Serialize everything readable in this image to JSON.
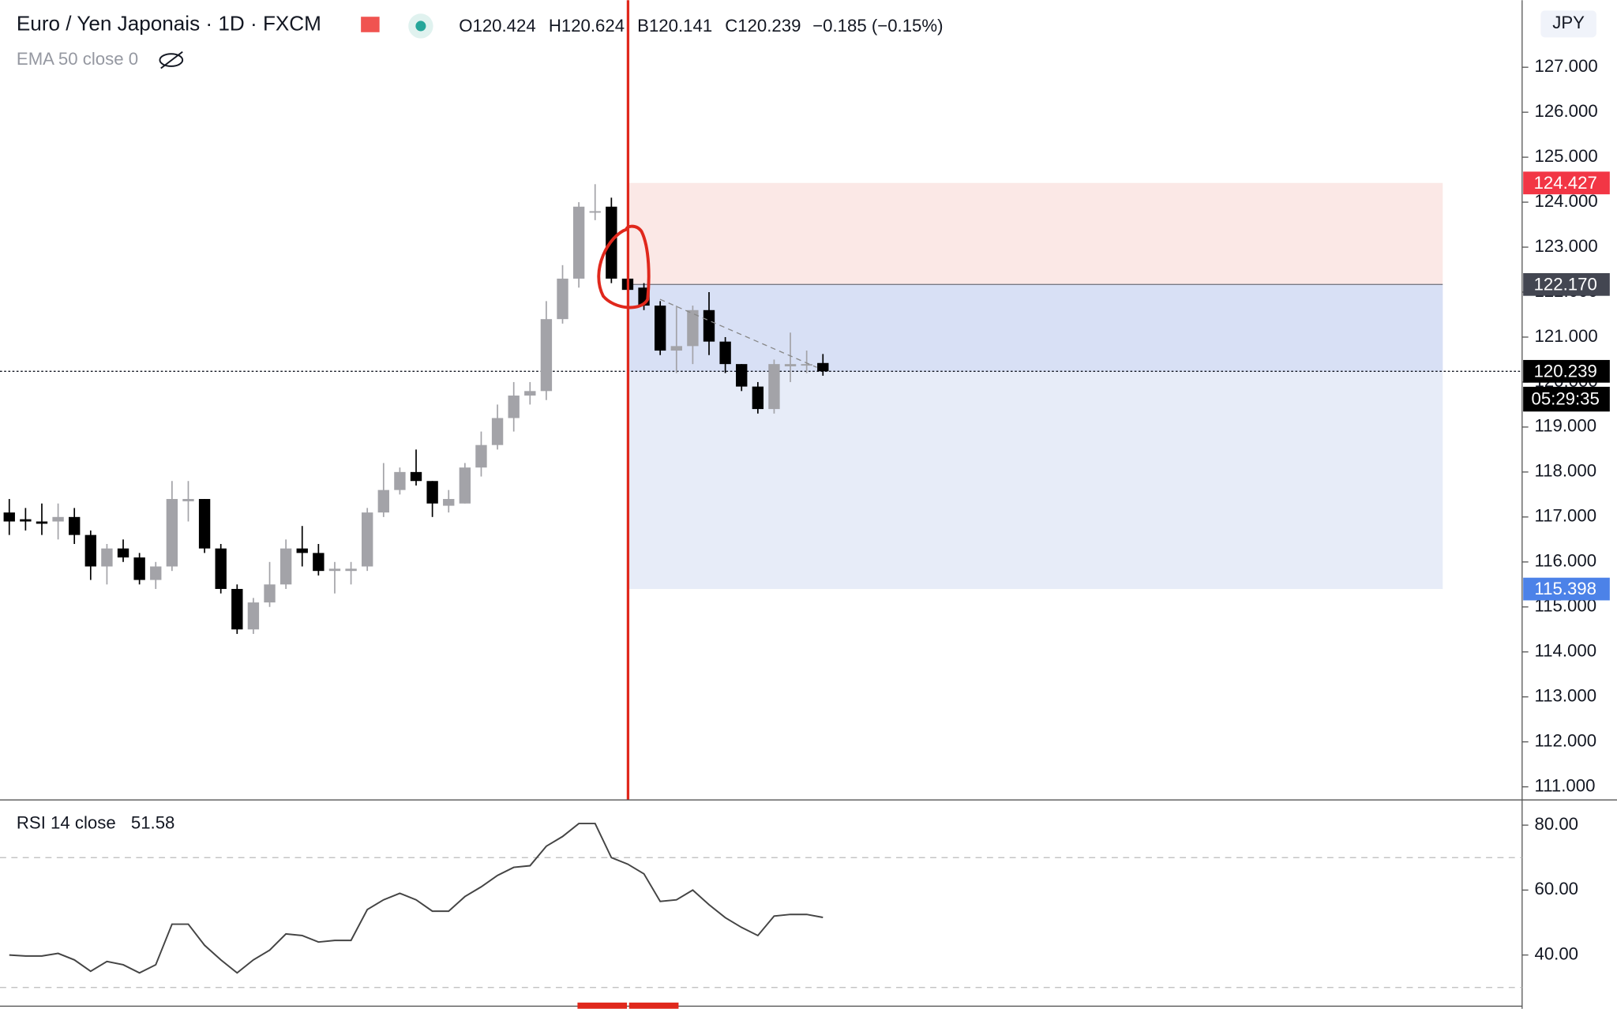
{
  "header": {
    "symbol": "Euro / Yen Japonais · 1D · FXCM",
    "open": "O120.424",
    "high": "H120.624",
    "low": "B120.141",
    "close": "C120.239",
    "change": "−0.185 (−0.15%)",
    "indicator": "EMA 50 close 0",
    "currency": "JPY"
  },
  "chart_data": [
    {
      "type": "candlestick",
      "up_color": "#a3a3a8",
      "down_color": "#000000",
      "open": [
        117.1,
        116.95,
        116.9,
        116.9,
        117.0,
        116.6,
        115.9,
        116.3,
        116.1,
        115.6,
        115.9,
        117.35,
        117.4,
        116.3,
        115.4,
        114.5,
        115.1,
        115.5,
        116.3,
        116.2,
        115.8,
        115.8,
        115.9,
        117.1,
        117.6,
        118.0,
        117.8,
        117.25,
        117.3,
        118.1,
        118.6,
        119.2,
        119.7,
        119.8,
        121.4,
        122.3,
        123.8,
        123.9,
        122.3,
        122.1,
        121.7,
        120.7,
        120.8,
        121.6,
        120.9,
        120.4,
        119.9,
        119.4,
        120.35,
        120.4,
        120.424
      ],
      "high": [
        117.4,
        117.2,
        117.3,
        117.3,
        117.2,
        116.7,
        116.4,
        116.5,
        116.2,
        116.0,
        117.8,
        117.8,
        117.4,
        116.4,
        115.5,
        115.2,
        116.0,
        116.5,
        116.8,
        116.4,
        116.0,
        116.0,
        117.2,
        118.2,
        118.1,
        118.5,
        117.8,
        117.6,
        118.2,
        118.9,
        119.5,
        120.0,
        120.0,
        121.8,
        122.6,
        124.0,
        124.4,
        124.1,
        122.5,
        122.2,
        121.8,
        121.7,
        121.7,
        122.0,
        121.0,
        120.4,
        120.0,
        120.5,
        121.1,
        120.7,
        120.624
      ],
      "low": [
        116.6,
        116.7,
        116.6,
        116.5,
        116.4,
        115.6,
        115.5,
        116.0,
        115.5,
        115.4,
        115.8,
        116.9,
        116.2,
        115.3,
        114.4,
        114.4,
        115.0,
        115.4,
        115.9,
        115.7,
        115.3,
        115.5,
        115.8,
        117.0,
        117.5,
        117.7,
        117.0,
        117.1,
        117.3,
        117.9,
        118.5,
        118.9,
        119.5,
        119.6,
        121.3,
        122.1,
        123.6,
        122.2,
        121.9,
        121.6,
        120.6,
        120.2,
        120.4,
        120.6,
        120.2,
        119.8,
        119.3,
        119.3,
        120.0,
        120.2,
        120.141
      ],
      "close": [
        116.9,
        116.9,
        116.85,
        117.0,
        116.6,
        115.9,
        116.3,
        116.1,
        115.6,
        115.9,
        117.4,
        117.4,
        116.3,
        115.4,
        114.5,
        115.1,
        115.5,
        116.3,
        116.2,
        115.8,
        115.85,
        115.85,
        117.1,
        117.6,
        118.0,
        117.8,
        117.3,
        117.4,
        118.1,
        118.6,
        119.2,
        119.7,
        119.8,
        121.4,
        122.3,
        123.9,
        123.8,
        122.3,
        122.05,
        121.7,
        120.7,
        120.8,
        121.6,
        120.9,
        120.4,
        119.9,
        119.4,
        120.4,
        120.4,
        120.4,
        120.239
      ],
      "ylim": [
        110.72,
        128.49
      ],
      "yticks": [
        {
          "value": 111,
          "label": "111.000"
        },
        {
          "value": 112,
          "label": "112.000"
        },
        {
          "value": 113,
          "label": "113.000"
        },
        {
          "value": 114,
          "label": "114.000"
        },
        {
          "value": 115,
          "label": "115.000"
        },
        {
          "value": 116,
          "label": "116.000"
        },
        {
          "value": 117,
          "label": "117.000"
        },
        {
          "value": 118,
          "label": "118.000"
        },
        {
          "value": 119,
          "label": "119.000"
        },
        {
          "value": 120,
          "label": "120.000"
        },
        {
          "value": 121,
          "label": "121.000"
        },
        {
          "value": 122,
          "label": "122.000"
        },
        {
          "value": 123,
          "label": "123.000"
        },
        {
          "value": 124,
          "label": "124.000"
        },
        {
          "value": 125,
          "label": "125.000"
        },
        {
          "value": 126,
          "label": "126.000"
        },
        {
          "value": 127,
          "label": "127.000"
        }
      ],
      "stop": {
        "value": 124.427,
        "label": "124.427"
      },
      "entry": {
        "value": 122.17,
        "label": "122.170"
      },
      "target": {
        "value": 115.398,
        "label": "115.398"
      },
      "last": {
        "value": 120.239,
        "label": "120.239"
      },
      "countdown": "05:29:35"
    },
    {
      "type": "line",
      "title": "RSI 14 close",
      "last_label": "51.58",
      "color": "#444444",
      "values": [
        40,
        39.7,
        39.7,
        40.5,
        38.5,
        35,
        38,
        37,
        34.5,
        37,
        49.5,
        49.5,
        43,
        38.5,
        34.5,
        38.5,
        41.5,
        46.5,
        46,
        44,
        44.5,
        44.5,
        54,
        57,
        59,
        57,
        53.5,
        53.5,
        58,
        61,
        64.5,
        67,
        67.5,
        73.5,
        76.5,
        80.5,
        80.5,
        70,
        68,
        65,
        56.5,
        57,
        60,
        55.5,
        51.5,
        48.5,
        46,
        52,
        52.5,
        52.5,
        51.58
      ],
      "ylim": [
        24.4,
        87.6
      ],
      "yticks": [
        {
          "value": 80,
          "label": "80.00"
        },
        {
          "value": 60,
          "label": "60.00"
        },
        {
          "value": 40,
          "label": "40.00"
        }
      ],
      "levels": [
        70,
        30
      ]
    }
  ]
}
